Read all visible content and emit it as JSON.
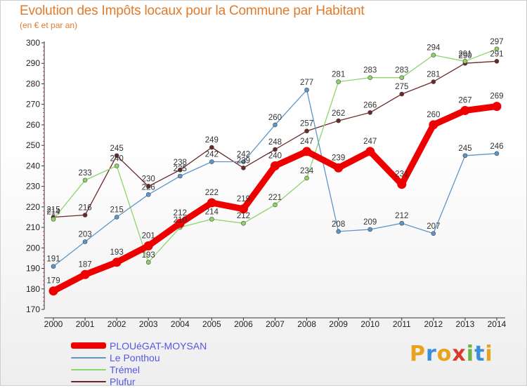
{
  "header": {
    "title": "Evolution des Impôts locaux pour la Commune par Habitant",
    "subtitle": "(en € et par an)"
  },
  "chart_data": {
    "type": "line",
    "title": "Evolution des Impôts locaux pour la Commune par Habitant",
    "subtitle": "(en € et par an)",
    "xlabel": "",
    "ylabel": "",
    "ylim": [
      170,
      300
    ],
    "yticks": [
      170,
      180,
      190,
      200,
      210,
      220,
      230,
      240,
      250,
      260,
      270,
      280,
      290,
      300
    ],
    "grid": false,
    "legend_position": "bottom-left",
    "categories": [
      "2000",
      "2001",
      "2002",
      "2003",
      "2004",
      "2005",
      "2006",
      "2007",
      "2008",
      "2009",
      "2010",
      "2011",
      "2012",
      "2013",
      "2014"
    ],
    "series": [
      {
        "name": "PLOUéGAT-MOYSAN",
        "color": "#ee0000",
        "values": [
          179,
          187,
          193,
          201,
          212,
          222,
          219,
          240,
          247,
          239,
          247,
          231,
          260,
          267,
          269
        ]
      },
      {
        "name": "Le Ponthou",
        "color": "#5f95c9",
        "values": [
          191,
          203,
          215,
          226,
          235,
          242,
          242,
          260,
          277,
          208,
          209,
          212,
          207,
          245,
          246
        ]
      },
      {
        "name": "Trémel",
        "color": "#8ed46a",
        "values": [
          214,
          233,
          240,
          193,
          210,
          214,
          212,
          221,
          234,
          281,
          283,
          283,
          294,
          291,
          297
        ]
      },
      {
        "name": "Plufur",
        "color": "#6b2828",
        "values": [
          215,
          216,
          245,
          230,
          238,
          249,
          239,
          248,
          257,
          262,
          266,
          275,
          281,
          290,
          291
        ]
      }
    ]
  },
  "legend": {
    "items": [
      {
        "label": "PLOUéGAT-MOYSAN",
        "color": "#ee0000"
      },
      {
        "label": "Le Ponthou",
        "color": "#5f95c9"
      },
      {
        "label": "Trémel",
        "color": "#8ed46a"
      },
      {
        "label": "Plufur",
        "color": "#6b2828"
      }
    ]
  },
  "logo": {
    "letters": [
      "P",
      "r",
      "o",
      "x",
      "i",
      "t",
      "i"
    ],
    "colors": [
      "#e8a21d",
      "#3a8fd8",
      "#e8a21d",
      "#d93a2a",
      "#6cb43f",
      "#3a8fd8",
      "#e8a21d"
    ]
  }
}
